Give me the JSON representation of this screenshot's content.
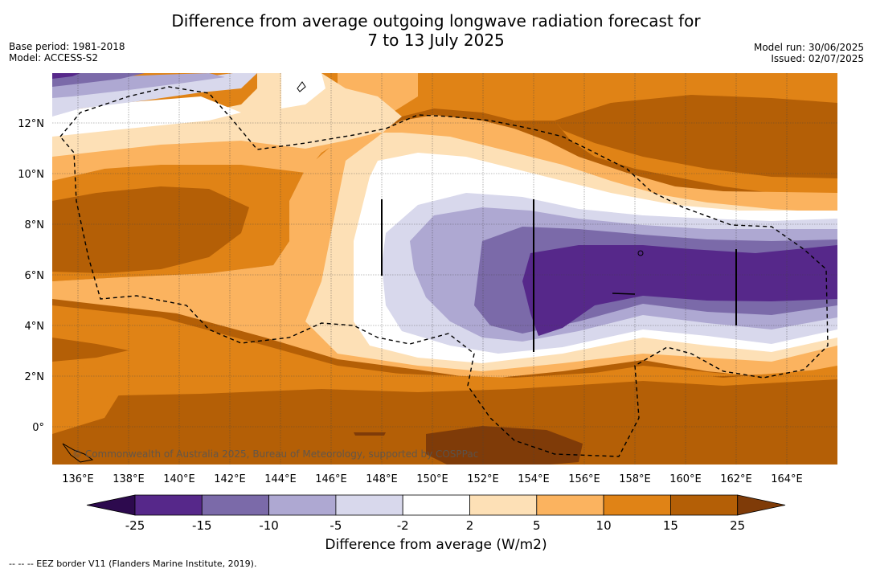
{
  "header": {
    "title_line1": "Difference from average outgoing longwave radiation forecast for",
    "title_line2": "7 to 13 July 2025",
    "base_period": "Base period: 1981-2018",
    "model": "Model: ACCESS-S2",
    "model_run": "Model run: 30/06/2025",
    "issued": "Issued: 02/07/2025"
  },
  "map": {
    "copyright": "© Commonwealth of Australia 2025, Bureau of Meteorology, supported by COSPPac",
    "lat_labels": [
      "12°N",
      "10°N",
      "8°N",
      "6°N",
      "4°N",
      "2°N",
      "0°"
    ],
    "lon_labels": [
      "136°E",
      "138°E",
      "140°E",
      "142°E",
      "144°E",
      "146°E",
      "148°E",
      "150°E",
      "152°E",
      "154°E",
      "156°E",
      "158°E",
      "160°E",
      "162°E",
      "164°E"
    ]
  },
  "colorbar": {
    "labels": [
      "-25",
      "-15",
      "-10",
      "-5",
      "-2",
      "2",
      "5",
      "10",
      "15",
      "25"
    ],
    "colors": [
      "#56288a",
      "#7b6aa9",
      "#aea8d2",
      "#d8d8ec",
      "#ffffff",
      "#fde0b6",
      "#fbb35f",
      "#e08316",
      "#b45f06"
    ],
    "under_color": "#2d0a4e",
    "over_color": "#7f3b08",
    "title": "Difference from average (W/m2)"
  },
  "footnote": "--  --  -- EEZ border V11 (Flanders Marine Institute, 2019)."
}
